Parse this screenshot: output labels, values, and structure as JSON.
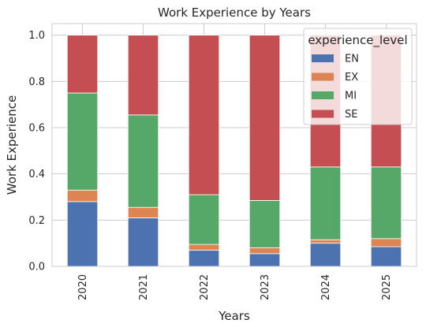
{
  "chart_data": {
    "type": "bar",
    "stacked": true,
    "title": "Work Experience by Years",
    "xlabel": "Years",
    "ylabel": "Work Experience",
    "categories": [
      "2020",
      "2021",
      "2022",
      "2023",
      "2024",
      "2025"
    ],
    "ylim": [
      0,
      1.05
    ],
    "yticks": [
      0.0,
      0.2,
      0.4,
      0.6,
      0.8,
      1.0
    ],
    "ytick_labels": [
      "0.0",
      "0.2",
      "0.4",
      "0.6",
      "0.8",
      "1.0"
    ],
    "grid": true,
    "legend": {
      "title": "experience_level",
      "placement": "top-right"
    },
    "series": [
      {
        "name": "EN",
        "color": "#4C72B0",
        "values": [
          0.28,
          0.21,
          0.07,
          0.055,
          0.1,
          0.085
        ]
      },
      {
        "name": "EX",
        "color": "#DD8452",
        "values": [
          0.05,
          0.045,
          0.025,
          0.025,
          0.015,
          0.035
        ]
      },
      {
        "name": "MI",
        "color": "#55A868",
        "values": [
          0.42,
          0.4,
          0.215,
          0.205,
          0.315,
          0.31
        ]
      },
      {
        "name": "SE",
        "color": "#C44E52",
        "values": [
          0.25,
          0.345,
          0.69,
          0.715,
          0.57,
          0.57
        ]
      }
    ]
  }
}
